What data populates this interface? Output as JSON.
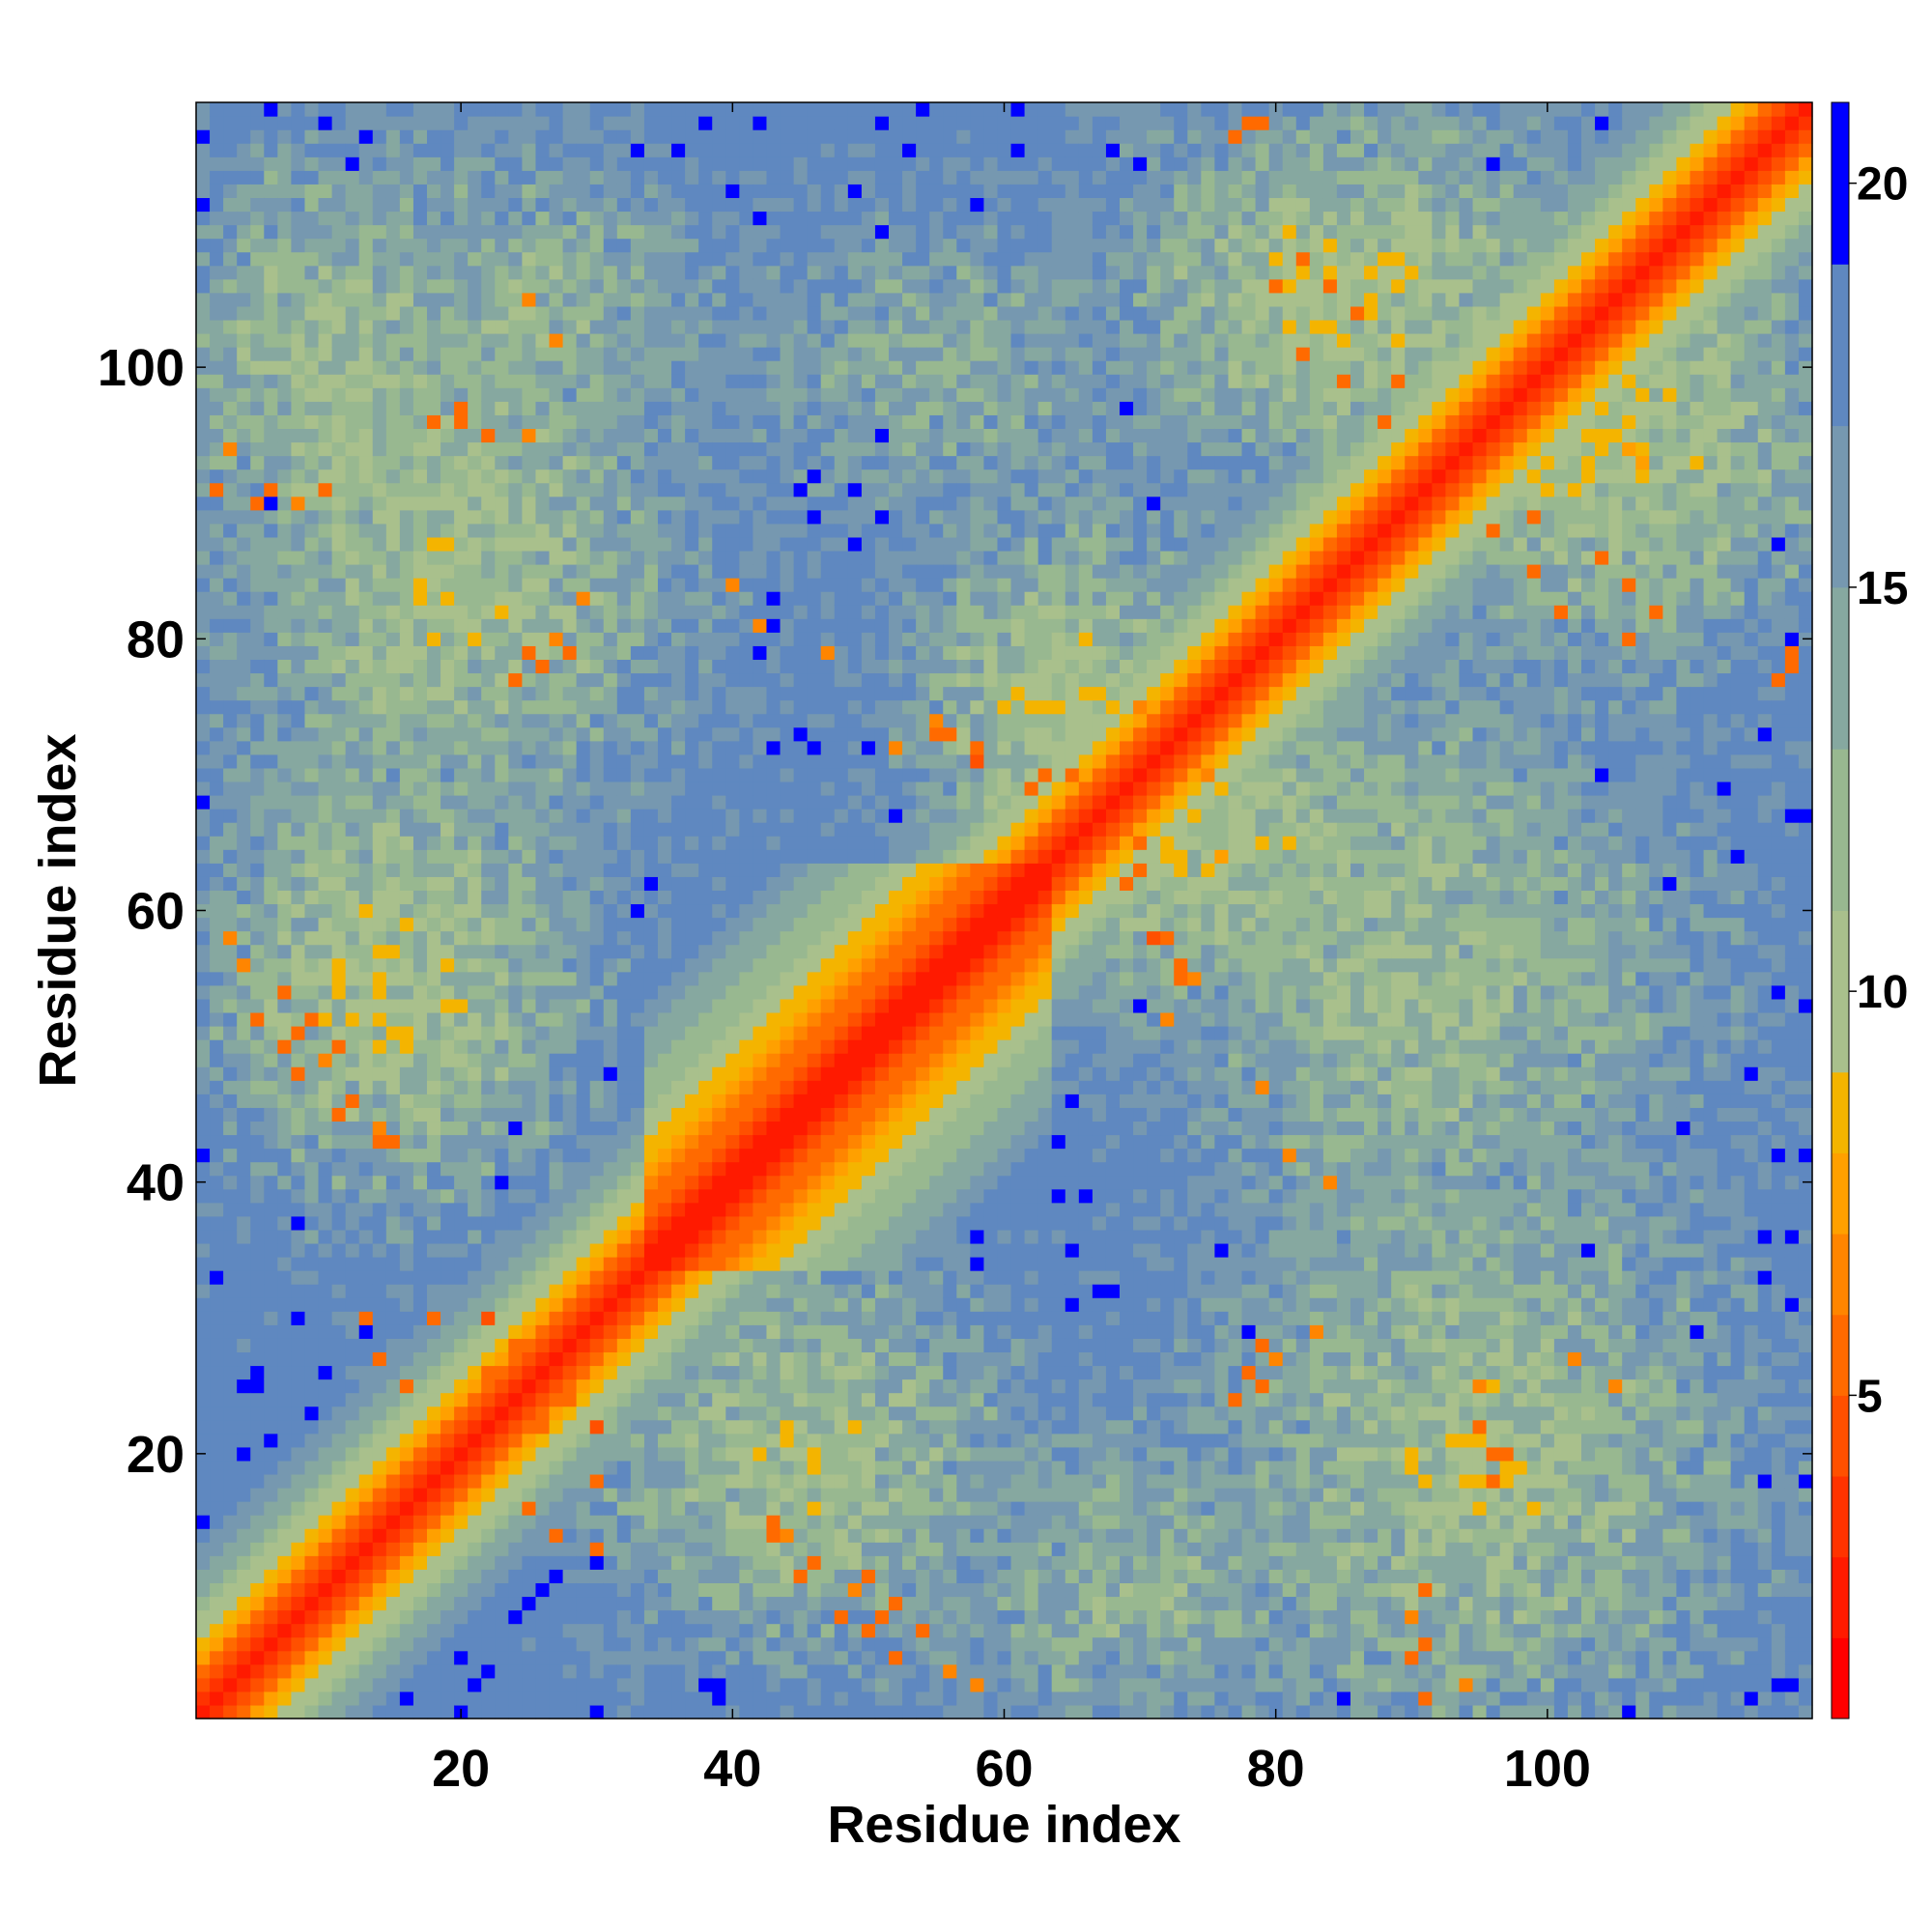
{
  "chart_data": {
    "type": "heatmap",
    "title": "",
    "xlabel": "Residue index",
    "ylabel": "Residue index",
    "n_residues": 119,
    "xlim": [
      1,
      119
    ],
    "ylim": [
      1,
      119
    ],
    "x_ticks": [
      "20",
      "40",
      "60",
      "80",
      "100"
    ],
    "y_ticks": [
      "20",
      "40",
      "60",
      "80",
      "100"
    ],
    "colorbar": {
      "min": 1,
      "max": 21,
      "ticks": [
        "5",
        "10",
        "15",
        "20"
      ],
      "levels": [
        {
          "upto": 2,
          "color": "#ff0000"
        },
        {
          "upto": 3,
          "color": "#ff1a00"
        },
        {
          "upto": 4,
          "color": "#ff3300"
        },
        {
          "upto": 5,
          "color": "#ff5000"
        },
        {
          "upto": 6,
          "color": "#ff6a00"
        },
        {
          "upto": 7,
          "color": "#ff8500"
        },
        {
          "upto": 8,
          "color": "#ffa000"
        },
        {
          "upto": 9,
          "color": "#f4b400"
        },
        {
          "upto": 11,
          "color": "#a9c08c"
        },
        {
          "upto": 13,
          "color": "#98b890"
        },
        {
          "upto": 15,
          "color": "#86a8a0"
        },
        {
          "upto": 17,
          "color": "#7698b0"
        },
        {
          "upto": 19,
          "color": "#5f88c0"
        },
        {
          "upto": 21,
          "color": "#0000ff"
        }
      ]
    },
    "contacts": [
      {
        "i": 22,
        "j": 30,
        "d": 4.5
      },
      {
        "i": 24,
        "j": 28,
        "d": 5.0
      },
      {
        "i": 18,
        "j": 30,
        "d": 5.5
      },
      {
        "i": 22,
        "j": 26,
        "d": 5.0
      },
      {
        "i": 25,
        "j": 16,
        "d": 5.5
      },
      {
        "i": 27,
        "j": 14,
        "d": 5.0
      },
      {
        "i": 30,
        "j": 13,
        "d": 5.5
      },
      {
        "i": 20,
        "j": 96,
        "d": 5.0
      },
      {
        "i": 22,
        "j": 95,
        "d": 5.5
      },
      {
        "i": 10,
        "j": 91,
        "d": 5.0
      },
      {
        "i": 6,
        "j": 91,
        "d": 5.5
      },
      {
        "i": 2,
        "j": 91,
        "d": 6.0
      },
      {
        "i": 28,
        "j": 79,
        "d": 5.5
      },
      {
        "i": 26,
        "j": 78,
        "d": 5.5
      },
      {
        "i": 20,
        "j": 96,
        "d": 5.0
      },
      {
        "i": 25,
        "j": 95,
        "d": 6.0
      },
      {
        "i": 7,
        "j": 54,
        "d": 5.5
      },
      {
        "i": 9,
        "j": 52,
        "d": 5.0
      },
      {
        "i": 11,
        "j": 50,
        "d": 5.5
      },
      {
        "i": 12,
        "j": 46,
        "d": 5.0
      },
      {
        "i": 14,
        "j": 43,
        "d": 5.5
      },
      {
        "i": 3,
        "j": 58,
        "d": 6.0
      },
      {
        "i": 50,
        "j": 7,
        "d": 5.5
      },
      {
        "i": 52,
        "j": 5,
        "d": 5.0
      },
      {
        "i": 56,
        "j": 4,
        "d": 6.0
      },
      {
        "i": 45,
        "j": 11,
        "d": 5.5
      },
      {
        "i": 48,
        "j": 8,
        "d": 5.0
      },
      {
        "i": 43,
        "j": 15,
        "d": 5.5
      },
      {
        "i": 58,
        "j": 71,
        "d": 4.5
      },
      {
        "i": 56,
        "j": 73,
        "d": 5.0
      },
      {
        "i": 62,
        "j": 69,
        "d": 5.5
      },
      {
        "i": 65,
        "j": 70,
        "d": 5.0
      },
      {
        "i": 68,
        "j": 66,
        "d": 5.5
      },
      {
        "i": 70,
        "j": 63,
        "d": 5.0
      },
      {
        "i": 72,
        "j": 58,
        "d": 5.5
      },
      {
        "i": 73,
        "j": 55,
        "d": 5.0
      },
      {
        "i": 77,
        "j": 24,
        "d": 5.0
      },
      {
        "i": 79,
        "j": 25,
        "d": 5.5
      },
      {
        "i": 97,
        "j": 20,
        "d": 5.0
      },
      {
        "i": 96,
        "j": 18,
        "d": 5.5
      },
      {
        "i": 90,
        "j": 5,
        "d": 5.0
      },
      {
        "i": 91,
        "j": 2,
        "d": 5.5
      },
      {
        "i": 79,
        "j": 118,
        "d": 5.5
      },
      {
        "i": 77,
        "j": 117,
        "d": 5.0
      },
      {
        "i": 86,
        "j": 104,
        "d": 5.0
      },
      {
        "i": 84,
        "j": 106,
        "d": 5.5
      },
      {
        "i": 82,
        "j": 108,
        "d": 5.5
      },
      {
        "i": 89,
        "j": 99,
        "d": 5.0
      },
      {
        "i": 96,
        "j": 88,
        "d": 5.0
      },
      {
        "i": 99,
        "j": 85,
        "d": 5.5
      },
      {
        "i": 101,
        "j": 82,
        "d": 5.5
      },
      {
        "i": 106,
        "j": 80,
        "d": 5.5
      },
      {
        "i": 118,
        "j": 78,
        "d": 5.0
      },
      {
        "i": 104,
        "j": 86,
        "d": 5.0
      },
      {
        "i": 108,
        "j": 82,
        "d": 5.5
      },
      {
        "i": 117,
        "j": 77,
        "d": 5.0
      },
      {
        "i": 42,
        "j": 81,
        "d": 6.0
      },
      {
        "i": 40,
        "j": 84,
        "d": 6.0
      },
      {
        "i": 47,
        "j": 79,
        "d": 6.5
      },
      {
        "i": 55,
        "j": 74,
        "d": 6.5
      },
      {
        "i": 49,
        "j": 10,
        "d": 6.0
      },
      {
        "i": 51,
        "j": 8,
        "d": 5.5
      },
      {
        "i": 46,
        "j": 12,
        "d": 6.0
      },
      {
        "i": 44,
        "j": 14,
        "d": 6.5
      },
      {
        "i": 90,
        "j": 8,
        "d": 6.0
      },
      {
        "i": 94,
        "j": 3,
        "d": 6.5
      },
      {
        "i": 80,
        "j": 27,
        "d": 6.0
      },
      {
        "i": 83,
        "j": 29,
        "d": 6.5
      },
      {
        "i": 102,
        "j": 27,
        "d": 6.0
      },
      {
        "i": 105,
        "j": 25,
        "d": 6.5
      },
      {
        "i": 72,
        "j": 52,
        "d": 6.0
      },
      {
        "i": 70,
        "j": 75,
        "d": 6.0
      },
      {
        "i": 35,
        "j": 40,
        "d": 6.0
      },
      {
        "i": 40,
        "j": 35,
        "d": 6.0
      }
    ]
  }
}
